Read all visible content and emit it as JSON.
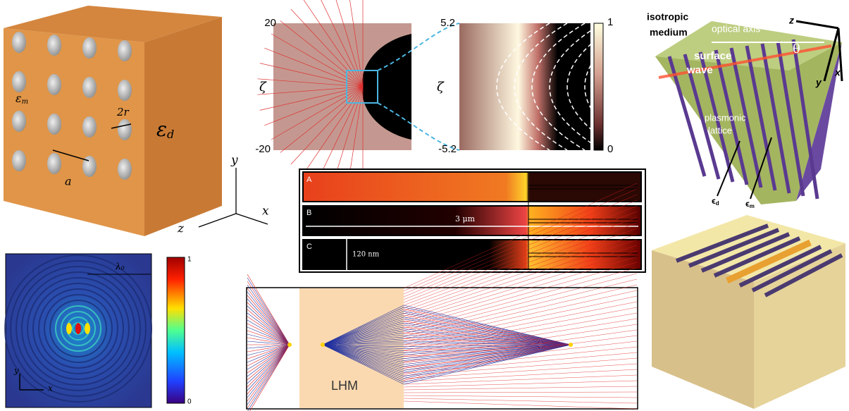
{
  "panels": {
    "cube": {
      "labels": {
        "eps_m": "ε",
        "eps_m_sub": "m",
        "two_r": "2r",
        "a": "a",
        "eps_d": "ε",
        "eps_d_sub": "d"
      },
      "axes": {
        "y": "y",
        "x": "x",
        "z": "z"
      }
    },
    "zeta_maps": {
      "left": {
        "top": "20",
        "bottom": "-20",
        "axis": "ζ"
      },
      "right": {
        "top": "5.2",
        "bottom": "-5.2",
        "axis": "ζ"
      },
      "colorbar": {
        "max": "1",
        "min": "0"
      }
    },
    "waveguides": {
      "rows": [
        "A",
        "B",
        "C"
      ],
      "length": "3 μm",
      "height": "120 nm"
    },
    "field": {
      "scale": "λ",
      "scale_sub": "0",
      "colorbar": {
        "max": "1",
        "min": "0"
      },
      "axes": {
        "y": "y",
        "x": "x"
      }
    },
    "lens": {
      "label": "LHM"
    },
    "prism": {
      "isotropic": "isotropic",
      "medium": "medium",
      "optical_axis": "optical axis",
      "theta": "θ",
      "surface": "surface",
      "wave": "wave",
      "plasmonic": "plasmonic",
      "lattice": "lattice",
      "eps_d": "ϵ",
      "eps_d_sub": "d",
      "eps_m": "ϵ",
      "eps_m_sub": "m",
      "axes": {
        "z": "z",
        "y": "y",
        "x": "x"
      }
    }
  }
}
